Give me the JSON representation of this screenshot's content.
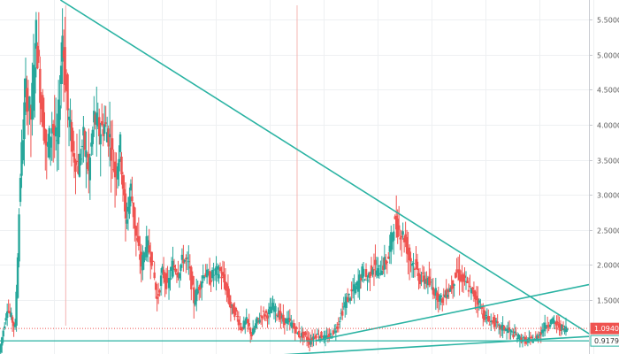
{
  "colors": {
    "up": "#26a69a",
    "down": "#ef5350",
    "trendline": "#2bb3a3",
    "grid": "#eef0f2",
    "axis_line": "#c8cbd0",
    "price_line": "#ef5350",
    "support_line": "#2bb3a3"
  },
  "chart_data": {
    "type": "candlestick",
    "grid": true,
    "y_axis": {
      "position": "right",
      "ticks": [
        "5.5000",
        "5.0000",
        "4.5000",
        "4.0000",
        "3.5000",
        "3.0000",
        "2.5000",
        "2.0000",
        "1.5000"
      ],
      "tick_values": [
        5.5,
        5.0,
        4.5,
        4.0,
        3.5,
        3.0,
        2.5,
        2.0,
        1.5
      ],
      "range": [
        0.73,
        5.78
      ]
    },
    "x_range": [
      0,
      112
    ],
    "last_price": {
      "value": 1.094,
      "label": "1.0940"
    },
    "support_level": {
      "value": 0.9179,
      "label": "0.9179"
    },
    "spike_markers": [
      12.5,
      56.5
    ],
    "price_series": [
      [
        0,
        0.75
      ],
      [
        1.5,
        1.4
      ],
      [
        3,
        1.1
      ],
      [
        4,
        3.3
      ],
      [
        5,
        4.5
      ],
      [
        6,
        4.1
      ],
      [
        7,
        5.3
      ],
      [
        8,
        4.3
      ],
      [
        9,
        3.6
      ],
      [
        10,
        4.0
      ],
      [
        11,
        3.7
      ],
      [
        12,
        5.3
      ],
      [
        13,
        4.2
      ],
      [
        14,
        3.6
      ],
      [
        15,
        3.4
      ],
      [
        16,
        3.8
      ],
      [
        17,
        3.3
      ],
      [
        18,
        4.1
      ],
      [
        19,
        3.9
      ],
      [
        20,
        4.0
      ],
      [
        21,
        3.8
      ],
      [
        22,
        3.3
      ],
      [
        23,
        3.7
      ],
      [
        24,
        2.6
      ],
      [
        25,
        3.1
      ],
      [
        26,
        2.4
      ],
      [
        27,
        2.0
      ],
      [
        28,
        2.3
      ],
      [
        29,
        2.1
      ],
      [
        30,
        1.5
      ],
      [
        31,
        1.9
      ],
      [
        32,
        1.7
      ],
      [
        33,
        2.0
      ],
      [
        34,
        1.9
      ],
      [
        35,
        2.1
      ],
      [
        36,
        2.0
      ],
      [
        37,
        1.5
      ],
      [
        38,
        1.7
      ],
      [
        39,
        1.9
      ],
      [
        40,
        1.8
      ],
      [
        41,
        1.9
      ],
      [
        42,
        1.9
      ],
      [
        43,
        1.7
      ],
      [
        44,
        1.4
      ],
      [
        45,
        1.3
      ],
      [
        46,
        1.1
      ],
      [
        47,
        1.2
      ],
      [
        48,
        1.0
      ],
      [
        49,
        1.2
      ],
      [
        50,
        1.3
      ],
      [
        51,
        1.3
      ],
      [
        52,
        1.4
      ],
      [
        53,
        1.3
      ],
      [
        54,
        1.2
      ],
      [
        55,
        1.2
      ],
      [
        56,
        1.1
      ],
      [
        57,
        1.0
      ],
      [
        58,
        1.0
      ],
      [
        59,
        0.9
      ],
      [
        60,
        1.0
      ],
      [
        61,
        1.0
      ],
      [
        62,
        0.95
      ],
      [
        63,
        1.0
      ],
      [
        64,
        1.1
      ],
      [
        65,
        1.3
      ],
      [
        66,
        1.5
      ],
      [
        67,
        1.6
      ],
      [
        68,
        1.7
      ],
      [
        69,
        1.9
      ],
      [
        70,
        1.8
      ],
      [
        71,
        2.0
      ],
      [
        72,
        1.9
      ],
      [
        73,
        2.0
      ],
      [
        74,
        2.1
      ],
      [
        75,
        2.6
      ],
      [
        76,
        2.5
      ],
      [
        77,
        2.4
      ],
      [
        78,
        2.1
      ],
      [
        79,
        2.0
      ],
      [
        80,
        1.8
      ],
      [
        81,
        1.8
      ],
      [
        82,
        1.7
      ],
      [
        83,
        1.6
      ],
      [
        84,
        1.5
      ],
      [
        85,
        1.6
      ],
      [
        86,
        1.7
      ],
      [
        87,
        1.9
      ],
      [
        88,
        1.8
      ],
      [
        89,
        1.7
      ],
      [
        90,
        1.6
      ],
      [
        91,
        1.5
      ],
      [
        92,
        1.3
      ],
      [
        93,
        1.2
      ],
      [
        94,
        1.2
      ],
      [
        95,
        1.1
      ],
      [
        96,
        1.1
      ],
      [
        97,
        1.05
      ],
      [
        98,
        1.0
      ],
      [
        99,
        0.95
      ],
      [
        100,
        0.92
      ],
      [
        101,
        0.93
      ],
      [
        102,
        0.95
      ],
      [
        103,
        1.05
      ],
      [
        104,
        1.15
      ],
      [
        105,
        1.2
      ],
      [
        106,
        1.15
      ],
      [
        107,
        1.1
      ],
      [
        108,
        1.094
      ]
    ],
    "trendlines": [
      {
        "name": "descending-resistance",
        "x1": 11.5,
        "y1": 5.78,
        "x2": 112,
        "y2": 1.02
      },
      {
        "name": "rising-support-upper",
        "x1": 60,
        "y1": 0.92,
        "x2": 112,
        "y2": 1.72
      },
      {
        "name": "rising-support-lower",
        "x1": 45,
        "y1": 0.68,
        "x2": 112,
        "y2": 0.98
      }
    ]
  }
}
